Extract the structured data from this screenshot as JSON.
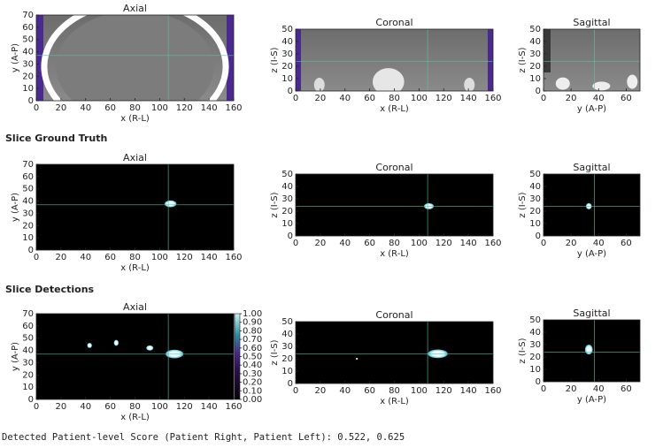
{
  "rows": [
    {
      "panels": [
        {
          "title": "Axial",
          "xlabel": "x (R-L)",
          "ylabel": "y (A-P)",
          "xlim": [
            0,
            160
          ],
          "ylim": [
            0,
            70
          ],
          "xticks": [
            0,
            20,
            40,
            60,
            80,
            100,
            120,
            140,
            160
          ],
          "yticks": [
            0,
            10,
            20,
            30,
            40,
            50,
            60,
            70
          ],
          "crosshair": [
            107,
            37
          ]
        },
        {
          "title": "Coronal",
          "xlabel": "x (R-L)",
          "ylabel": "z (I-S)",
          "xlim": [
            0,
            160
          ],
          "ylim": [
            0,
            50
          ],
          "xticks": [
            0,
            20,
            40,
            60,
            80,
            100,
            120,
            140,
            160
          ],
          "yticks": [
            0,
            10,
            20,
            30,
            40,
            50
          ],
          "crosshair": [
            107,
            24
          ]
        },
        {
          "title": "Sagittal",
          "xlabel": "y (A-P)",
          "ylabel": "z (I-S)",
          "xlim": [
            0,
            70
          ],
          "ylim": [
            0,
            50
          ],
          "xticks": [
            0,
            20,
            40,
            60
          ],
          "yticks": [
            0,
            10,
            20,
            30,
            40,
            50
          ],
          "crosshair": [
            37,
            24
          ]
        }
      ]
    },
    {
      "heading": "Slice Ground Truth",
      "panels": [
        {
          "title": "Axial",
          "xlabel": "x (R-L)",
          "ylabel": "y (A-P)",
          "xlim": [
            0,
            160
          ],
          "ylim": [
            0,
            70
          ],
          "xticks": [
            0,
            20,
            40,
            60,
            80,
            100,
            120,
            140,
            160
          ],
          "yticks": [
            0,
            10,
            20,
            30,
            40,
            50,
            60,
            70
          ],
          "crosshair": [
            107,
            37
          ]
        },
        {
          "title": "Coronal",
          "xlabel": "x (R-L)",
          "ylabel": "z (I-S)",
          "xlim": [
            0,
            160
          ],
          "ylim": [
            0,
            50
          ],
          "xticks": [
            0,
            20,
            40,
            60,
            80,
            100,
            120,
            140,
            160
          ],
          "yticks": [
            0,
            10,
            20,
            30,
            40,
            50
          ],
          "crosshair": [
            107,
            24
          ]
        },
        {
          "title": "Sagittal",
          "xlabel": "y (A-P)",
          "ylabel": "z (I-S)",
          "xlim": [
            0,
            70
          ],
          "ylim": [
            0,
            50
          ],
          "xticks": [
            0,
            20,
            40,
            60
          ],
          "yticks": [
            0,
            10,
            20,
            30,
            40,
            50
          ],
          "crosshair": [
            37,
            24
          ]
        }
      ]
    },
    {
      "heading": "Slice Detections",
      "panels": [
        {
          "title": "Axial",
          "xlabel": "x (R-L)",
          "ylabel": "y (A-P)",
          "xlim": [
            0,
            160
          ],
          "ylim": [
            0,
            70
          ],
          "xticks": [
            0,
            20,
            40,
            60,
            80,
            100,
            120,
            140,
            160
          ],
          "yticks": [
            0,
            10,
            20,
            30,
            40,
            50,
            60,
            70
          ],
          "crosshair": [
            107,
            37
          ]
        },
        {
          "title": "Coronal",
          "xlabel": "x (R-L)",
          "ylabel": "z (I-S)",
          "xlim": [
            0,
            160
          ],
          "ylim": [
            0,
            50
          ],
          "xticks": [
            0,
            20,
            40,
            60,
            80,
            100,
            120,
            140,
            160
          ],
          "yticks": [
            0,
            10,
            20,
            30,
            40,
            50
          ],
          "crosshair": [
            107,
            24
          ]
        },
        {
          "title": "Sagittal",
          "xlabel": "y (A-P)",
          "ylabel": "z (I-S)",
          "xlim": [
            0,
            70
          ],
          "ylim": [
            0,
            50
          ],
          "xticks": [
            0,
            20,
            40,
            60
          ],
          "yticks": [
            0,
            10,
            20,
            30,
            40,
            50
          ],
          "crosshair": [
            37,
            24
          ]
        }
      ],
      "colorbar": {
        "lim": [
          0,
          1
        ],
        "ticks": [
          {
            "value": 1,
            "label": "1.00"
          },
          {
            "value": 0.9,
            "label": "0.90"
          },
          {
            "value": 0.8,
            "label": "0.80"
          },
          {
            "value": 0.7,
            "label": "0.70"
          },
          {
            "value": 0.6,
            "label": "0.60"
          },
          {
            "value": 0.5,
            "label": "0.50"
          },
          {
            "value": 0.4,
            "label": "0.40"
          },
          {
            "value": 0.3,
            "label": "0.30"
          },
          {
            "value": 0.2,
            "label": "0.20"
          },
          {
            "value": 0.1,
            "label": "0.10"
          },
          {
            "value": 0,
            "label": "0.00"
          }
        ]
      }
    }
  ],
  "footer": "Detected Patient-level Score (Patient Right, Patient Left): 0.522, 0.625"
}
